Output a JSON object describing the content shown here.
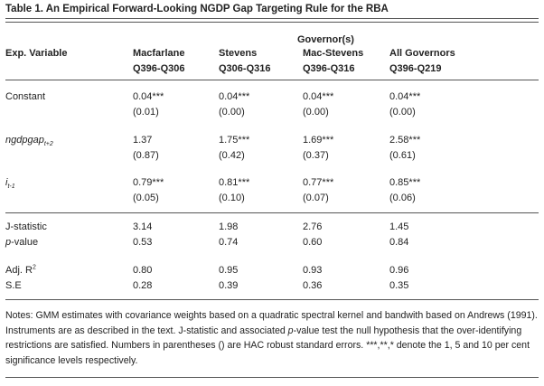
{
  "title": "Table 1. An Empirical Forward-Looking NGDP Gap Targeting Rule for the RBA",
  "header": {
    "group_label": "Governor(s)",
    "exp_variable": "Exp. Variable",
    "columns": [
      {
        "name": "Macfarlane",
        "period": "Q396-Q306"
      },
      {
        "name": "Stevens",
        "period": "Q306-Q316"
      },
      {
        "name": "Mac-Stevens",
        "period": "Q396-Q316"
      },
      {
        "name": "All Governors",
        "period": "Q396-Q219"
      }
    ]
  },
  "rows": [
    {
      "label": "Constant",
      "coef": [
        "0.04***",
        "0.04***",
        "0.04***",
        "0.04***"
      ],
      "se": [
        "(0.01)",
        "(0.00)",
        "(0.00)",
        "(0.00)"
      ]
    },
    {
      "label": "ngdpgap",
      "label_sub": "t+2",
      "coef": [
        "1.37",
        "1.75***",
        "1.69***",
        "2.58***"
      ],
      "se": [
        "(0.87)",
        "(0.42)",
        "(0.37)",
        "(0.61)"
      ]
    },
    {
      "label": "i",
      "label_sub": "t-1",
      "coef": [
        "0.79***",
        "0.81***",
        "0.77***",
        "0.85***"
      ],
      "se": [
        "(0.05)",
        "(0.10)",
        "(0.07)",
        "(0.06)"
      ]
    }
  ],
  "stats": [
    {
      "label": "J-statistic",
      "values": [
        "3.14",
        "1.98",
        "2.76",
        "1.45"
      ]
    },
    {
      "label": "p",
      "label_rest": "-value",
      "values": [
        "0.53",
        "0.74",
        "0.60",
        "0.84"
      ]
    },
    {
      "label": "Adj. R",
      "label_sup": "2",
      "values": [
        "0.80",
        "0.95",
        "0.93",
        "0.96"
      ]
    },
    {
      "label": "S.E",
      "values": [
        "0.28",
        "0.39",
        "0.36",
        "0.35"
      ]
    }
  ],
  "notes": {
    "part1": "Notes: GMM estimates with covariance weights based on a quadratic spectral kernel and bandwith based on Andrews (1991). Instruments are as described in the text. J-statistic and associated ",
    "p": "p",
    "part2": "-value test the null hypothesis that the over-identifying restrictions are satisfied. Numbers in parentheses () are HAC robust standard errors. ***,**,* denote the 1, 5 and 10 per cent significance levels respectively."
  }
}
